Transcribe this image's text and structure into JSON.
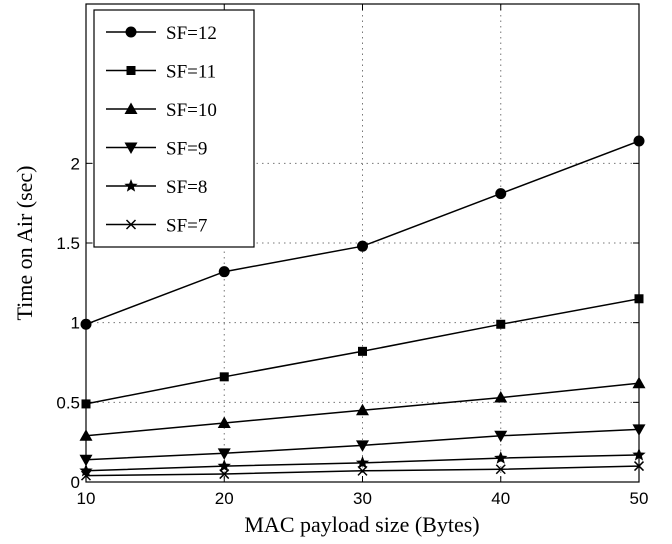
{
  "chart_data": {
    "type": "line",
    "title": "",
    "xlabel": "MAC payload size (Bytes)",
    "ylabel": "Time on Air (sec)",
    "xlim": [
      10,
      50
    ],
    "ylim": [
      0,
      3
    ],
    "x": [
      10,
      20,
      30,
      40,
      50
    ],
    "xticks": [
      "10",
      "20",
      "30",
      "40",
      "50"
    ],
    "yticks": [
      {
        "value": 0,
        "label": "0"
      },
      {
        "value": 0.5,
        "label": "0.5"
      },
      {
        "value": 1,
        "label": "1"
      },
      {
        "value": 1.5,
        "label": "1.5"
      },
      {
        "value": 2,
        "label": "2"
      }
    ],
    "grid": true,
    "legend_position": "top-left",
    "series": [
      {
        "name": "SF=12",
        "marker": "circle",
        "values": [
          0.99,
          1.32,
          1.48,
          1.81,
          2.14
        ]
      },
      {
        "name": "SF=11",
        "marker": "square",
        "values": [
          0.49,
          0.66,
          0.82,
          0.99,
          1.15
        ]
      },
      {
        "name": "SF=10",
        "marker": "triangle-up",
        "values": [
          0.29,
          0.37,
          0.45,
          0.53,
          0.62
        ]
      },
      {
        "name": "SF=9",
        "marker": "triangle-down",
        "values": [
          0.14,
          0.18,
          0.23,
          0.29,
          0.33
        ]
      },
      {
        "name": "SF=8",
        "marker": "star",
        "values": [
          0.07,
          0.1,
          0.12,
          0.15,
          0.17
        ]
      },
      {
        "name": "SF=7",
        "marker": "x",
        "values": [
          0.04,
          0.05,
          0.07,
          0.08,
          0.1
        ]
      }
    ],
    "color": "#000000"
  }
}
